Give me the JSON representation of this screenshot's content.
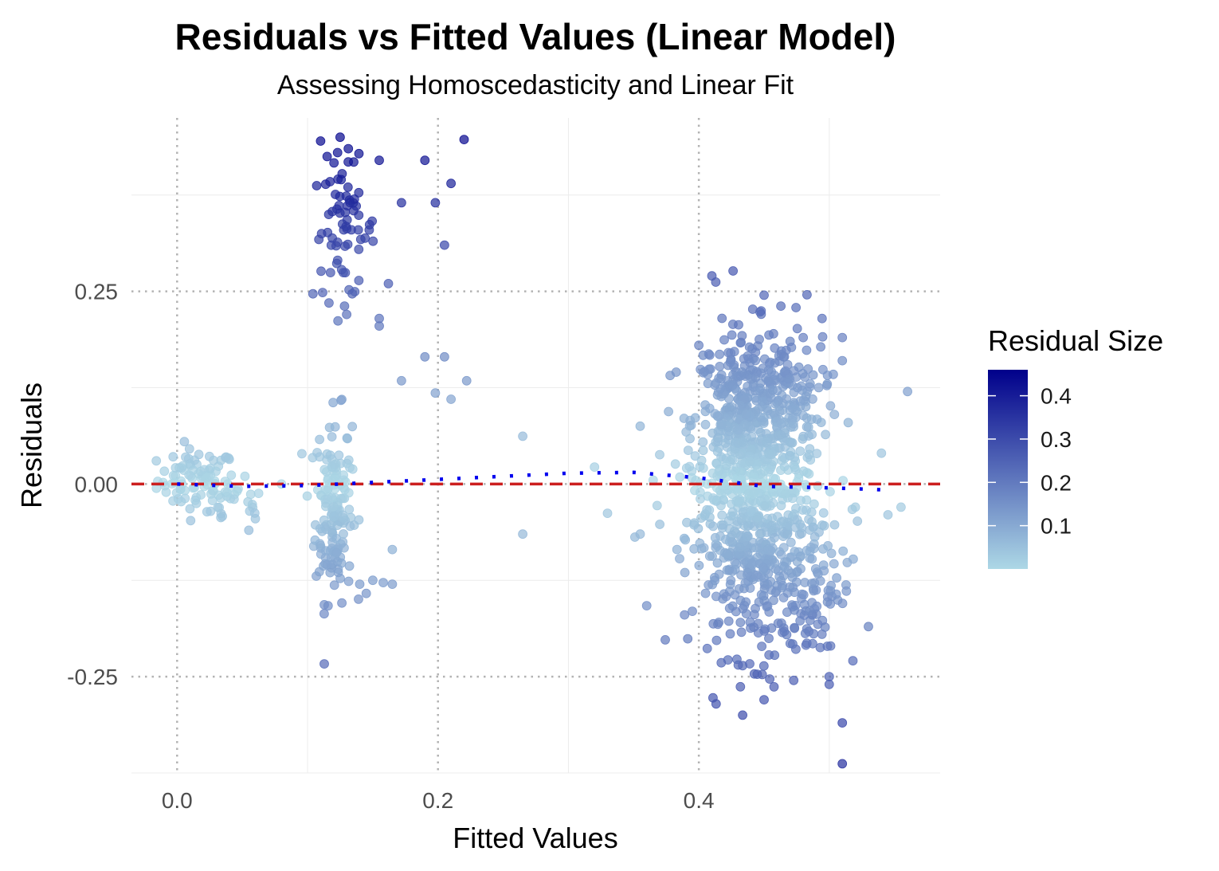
{
  "chart_data": {
    "type": "scatter",
    "title": "Residuals vs Fitted Values (Linear Model)",
    "subtitle": "Assessing Homoscedasticity and Linear Fit",
    "xlabel": "Fitted Values",
    "ylabel": "Residuals",
    "xlim": [
      -0.035,
      0.585
    ],
    "ylim": [
      -0.375,
      0.475
    ],
    "x_ticks": [
      {
        "value": 0.0,
        "label": "0.0"
      },
      {
        "value": 0.2,
        "label": "0.2"
      },
      {
        "value": 0.4,
        "label": "0.4"
      }
    ],
    "y_ticks": [
      {
        "value": 0.25,
        "label": "0.25"
      },
      {
        "value": 0.0,
        "label": "0.00"
      },
      {
        "value": -0.25,
        "label": "-0.25"
      }
    ],
    "grid": true,
    "reference_line": {
      "y": 0,
      "color": "#cc1f1f",
      "style": "dashed"
    },
    "smooth_line": {
      "color": "#0000ee",
      "style": "dotted",
      "x": [
        0.0,
        0.05,
        0.1,
        0.15,
        0.2,
        0.25,
        0.3,
        0.35,
        0.4,
        0.45,
        0.5,
        0.55
      ],
      "y": [
        0.0,
        -0.003,
        -0.002,
        0.002,
        0.006,
        0.01,
        0.014,
        0.015,
        0.008,
        -0.003,
        -0.005,
        -0.008
      ]
    },
    "color_scale": {
      "name": "Residual Size",
      "low": "#add8e6",
      "high": "#00008b",
      "range": [
        0.0,
        0.46
      ],
      "ticks": [
        {
          "value": 0.1,
          "label": "0.1"
        },
        {
          "value": 0.2,
          "label": "0.2"
        },
        {
          "value": 0.3,
          "label": "0.3"
        },
        {
          "value": 0.4,
          "label": "0.4"
        }
      ]
    },
    "legend_position": "right",
    "clusters": [
      {
        "x_center": 0.015,
        "x_spread": 0.015,
        "y_center": 0.005,
        "y_spread": 0.02,
        "count": 80
      },
      {
        "x_center": 0.04,
        "x_spread": 0.015,
        "y_center": -0.025,
        "y_spread": 0.015,
        "count": 25
      },
      {
        "x_center": 0.12,
        "x_spread": 0.007,
        "y_center": -0.03,
        "y_spread": 0.06,
        "count": 160
      },
      {
        "x_center": 0.128,
        "x_spread": 0.012,
        "y_center": 0.33,
        "y_spread": 0.045,
        "count": 70
      },
      {
        "x_center": 0.435,
        "x_spread": 0.02,
        "y_center": 0.08,
        "y_spread": 0.06,
        "count": 420
      },
      {
        "x_center": 0.445,
        "x_spread": 0.025,
        "y_center": -0.08,
        "y_spread": 0.07,
        "count": 520
      },
      {
        "x_center": 0.47,
        "x_spread": 0.015,
        "y_center": 0.1,
        "y_spread": 0.05,
        "count": 120
      },
      {
        "x_center": 0.49,
        "x_spread": 0.015,
        "y_center": -0.12,
        "y_spread": 0.06,
        "count": 60
      }
    ],
    "points": [
      [
        0.11,
        0.445
      ],
      [
        0.125,
        0.45
      ],
      [
        0.115,
        0.425
      ],
      [
        0.123,
        0.43
      ],
      [
        0.22,
        0.447
      ],
      [
        0.155,
        0.42
      ],
      [
        0.19,
        0.42
      ],
      [
        0.21,
        0.39
      ],
      [
        0.198,
        0.365
      ],
      [
        0.172,
        0.365
      ],
      [
        0.205,
        0.31
      ],
      [
        0.41,
        0.27
      ],
      [
        0.413,
        0.262
      ],
      [
        0.45,
        0.245
      ],
      [
        0.155,
        0.205
      ],
      [
        0.13,
        0.22
      ],
      [
        0.162,
        0.26
      ],
      [
        0.19,
        0.165
      ],
      [
        0.205,
        0.165
      ],
      [
        0.198,
        0.118
      ],
      [
        0.21,
        0.11
      ],
      [
        0.222,
        0.134
      ],
      [
        0.172,
        0.134
      ],
      [
        0.265,
        0.062
      ],
      [
        0.265,
        -0.065
      ],
      [
        0.32,
        0.022
      ],
      [
        0.33,
        -0.038
      ],
      [
        0.355,
        0.075
      ],
      [
        0.355,
        -0.065
      ],
      [
        0.36,
        -0.158
      ],
      [
        0.368,
        -0.028
      ],
      [
        0.37,
        0.038
      ],
      [
        0.365,
        0.005
      ],
      [
        0.14,
        -0.13
      ],
      [
        0.15,
        -0.125
      ],
      [
        0.158,
        -0.128
      ],
      [
        0.165,
        -0.13
      ],
      [
        0.145,
        -0.142
      ],
      [
        0.165,
        -0.085
      ],
      [
        0.56,
        0.12
      ],
      [
        0.54,
        0.04
      ],
      [
        0.555,
        -0.03
      ],
      [
        0.53,
        -0.185
      ],
      [
        0.51,
        0.19
      ],
      [
        0.51,
        0.16
      ],
      [
        0.51,
        -0.31
      ],
      [
        0.51,
        -0.363
      ],
      [
        0.45,
        -0.28
      ],
      [
        0.5,
        -0.25
      ],
      [
        0.545,
        -0.04
      ],
      [
        0.52,
        -0.03
      ],
      [
        0.08,
        0.0
      ],
      [
        0.055,
        -0.06
      ],
      [
        0.06,
        -0.045
      ],
      [
        0.04,
        0.032
      ],
      [
        0.052,
        0.01
      ],
      [
        0.48,
        0.19
      ],
      [
        0.47,
        0.185
      ],
      [
        0.4,
        0.18
      ],
      [
        0.5,
        -0.26
      ]
    ]
  }
}
